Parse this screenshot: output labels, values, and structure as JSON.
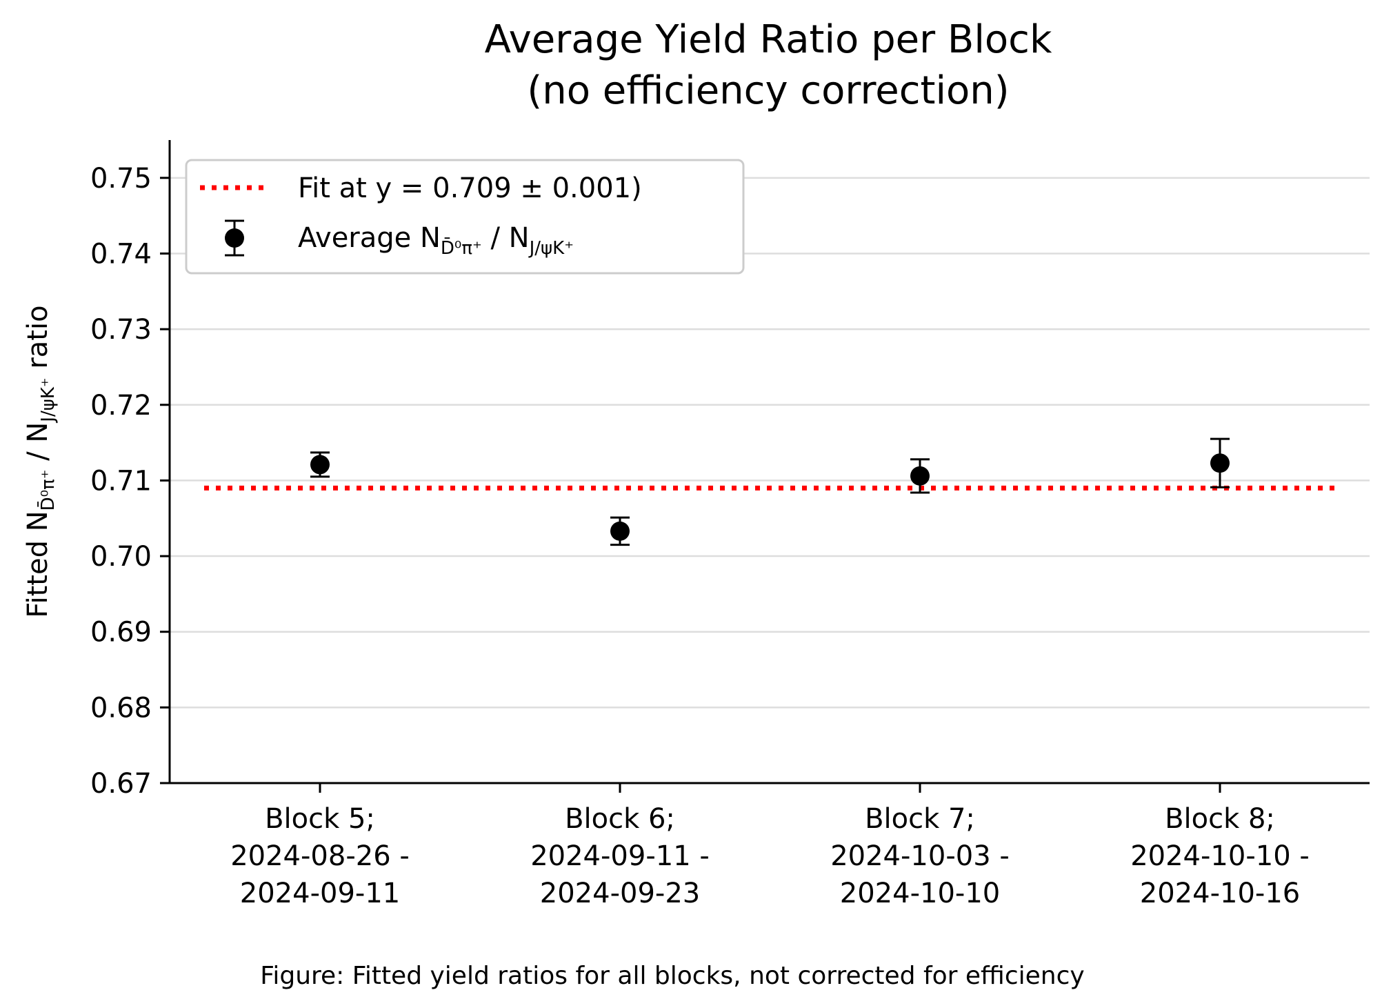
{
  "chart_data": {
    "type": "scatter",
    "title_lines": [
      "Average Yield Ratio per Block",
      "(no efficiency correction)"
    ],
    "ylabel": {
      "prefix": "Fitted N",
      "sub1": "D̄⁰π⁺",
      "sep": " / N",
      "sub2": "J/ψK⁺",
      "suffix": " ratio"
    },
    "ylim": [
      0.67,
      0.755
    ],
    "yticks": [
      0.67,
      0.68,
      0.69,
      0.7,
      0.71,
      0.72,
      0.73,
      0.74,
      0.75
    ],
    "ytick_labels": [
      "0.67",
      "0.68",
      "0.69",
      "0.70",
      "0.71",
      "0.72",
      "0.73",
      "0.74",
      "0.75"
    ],
    "grid": "horizontal",
    "legend_position": "top-left",
    "categories": [
      [
        "Block 5;",
        "2024-08-26 -",
        "2024-09-11"
      ],
      [
        "Block 6;",
        "2024-09-11 -",
        "2024-09-23"
      ],
      [
        "Block 7;",
        "2024-10-03 -",
        "2024-10-10"
      ],
      [
        "Block 8;",
        "2024-10-10 -",
        "2024-10-16"
      ]
    ],
    "points": [
      {
        "value": 0.7121,
        "err": 0.0016
      },
      {
        "value": 0.7033,
        "err": 0.0018
      },
      {
        "value": 0.7106,
        "err": 0.0022
      },
      {
        "value": 0.7123,
        "err": 0.0032
      }
    ],
    "fit": {
      "value": 0.709,
      "color": "#ff0000"
    },
    "legend": {
      "fit_label": "Fit at y = 0.709 ± 0.001)",
      "points_label": {
        "prefix": "Average N",
        "sub1": "D̄⁰π⁺",
        "sep": " / N",
        "sub2": "J/ψK⁺"
      }
    },
    "caption": "Figure: Fitted yield ratios for all blocks, not corrected for efficiency"
  }
}
